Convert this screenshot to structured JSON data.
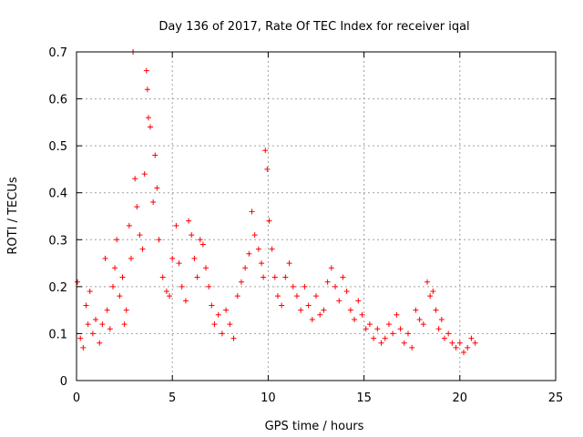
{
  "chart_data": {
    "type": "scatter",
    "title": "Day 136 of 2017, Rate Of TEC Index for receiver iqal",
    "xlabel": "GPS time / hours",
    "ylabel": "ROTI / TECUs",
    "xlim": [
      0,
      25
    ],
    "ylim": [
      0,
      0.7
    ],
    "x_ticks": [
      0,
      5,
      10,
      15,
      20,
      25
    ],
    "x_tick_labels": [
      "0",
      "5",
      "10",
      "15",
      "20",
      "25"
    ],
    "y_ticks": [
      0,
      0.1,
      0.2,
      0.3,
      0.4,
      0.5,
      0.6,
      0.7
    ],
    "y_tick_labels": [
      "0",
      "0.1",
      "0.2",
      "0.3",
      "0.4",
      "0.5",
      "0.6",
      "0.7"
    ],
    "grid": true,
    "marker": "+",
    "marker_color": "#ff0000",
    "series": [
      {
        "name": "ROTI",
        "x": [
          0.05,
          0.2,
          0.35,
          0.5,
          0.6,
          0.7,
          0.85,
          1.0,
          1.2,
          1.35,
          1.5,
          1.6,
          1.75,
          1.9,
          2.0,
          2.1,
          2.25,
          2.4,
          2.5,
          2.6,
          2.75,
          2.85,
          2.95,
          3.05,
          3.15,
          3.3,
          3.45,
          3.55,
          3.65,
          3.7,
          3.75,
          3.85,
          4.0,
          4.1,
          4.2,
          4.3,
          4.5,
          4.7,
          4.85,
          5.0,
          5.2,
          5.35,
          5.5,
          5.7,
          5.85,
          6.0,
          6.15,
          6.3,
          6.45,
          6.6,
          6.75,
          6.9,
          7.05,
          7.2,
          7.4,
          7.6,
          7.8,
          8.0,
          8.2,
          8.4,
          8.6,
          8.8,
          9.0,
          9.15,
          9.3,
          9.5,
          9.65,
          9.75,
          9.85,
          9.95,
          10.05,
          10.2,
          10.35,
          10.5,
          10.7,
          10.9,
          11.1,
          11.3,
          11.5,
          11.7,
          11.9,
          12.1,
          12.3,
          12.5,
          12.7,
          12.9,
          13.1,
          13.3,
          13.5,
          13.7,
          13.9,
          14.1,
          14.3,
          14.5,
          14.7,
          14.9,
          15.1,
          15.3,
          15.5,
          15.7,
          15.9,
          16.1,
          16.3,
          16.5,
          16.7,
          16.9,
          17.1,
          17.3,
          17.5,
          17.7,
          17.9,
          18.1,
          18.3,
          18.45,
          18.6,
          18.75,
          18.9,
          19.05,
          19.2,
          19.4,
          19.6,
          19.8,
          20.0,
          20.2,
          20.4,
          20.6,
          20.8
        ],
        "y": [
          0.21,
          0.09,
          0.07,
          0.16,
          0.12,
          0.19,
          0.1,
          0.13,
          0.08,
          0.12,
          0.26,
          0.15,
          0.11,
          0.2,
          0.24,
          0.3,
          0.18,
          0.22,
          0.12,
          0.15,
          0.33,
          0.26,
          0.7,
          0.43,
          0.37,
          0.31,
          0.28,
          0.44,
          0.66,
          0.62,
          0.56,
          0.54,
          0.38,
          0.48,
          0.41,
          0.3,
          0.22,
          0.19,
          0.18,
          0.26,
          0.33,
          0.25,
          0.2,
          0.17,
          0.34,
          0.31,
          0.26,
          0.22,
          0.3,
          0.29,
          0.24,
          0.2,
          0.16,
          0.12,
          0.14,
          0.1,
          0.15,
          0.12,
          0.09,
          0.18,
          0.21,
          0.24,
          0.27,
          0.36,
          0.31,
          0.28,
          0.25,
          0.22,
          0.49,
          0.45,
          0.34,
          0.28,
          0.22,
          0.18,
          0.16,
          0.22,
          0.25,
          0.2,
          0.18,
          0.15,
          0.2,
          0.16,
          0.13,
          0.18,
          0.14,
          0.15,
          0.21,
          0.24,
          0.2,
          0.17,
          0.22,
          0.19,
          0.15,
          0.13,
          0.17,
          0.14,
          0.11,
          0.12,
          0.09,
          0.11,
          0.08,
          0.09,
          0.12,
          0.1,
          0.14,
          0.11,
          0.08,
          0.1,
          0.07,
          0.15,
          0.13,
          0.12,
          0.21,
          0.18,
          0.19,
          0.15,
          0.11,
          0.13,
          0.09,
          0.1,
          0.08,
          0.07,
          0.08,
          0.06,
          0.07,
          0.09,
          0.08
        ]
      }
    ]
  }
}
